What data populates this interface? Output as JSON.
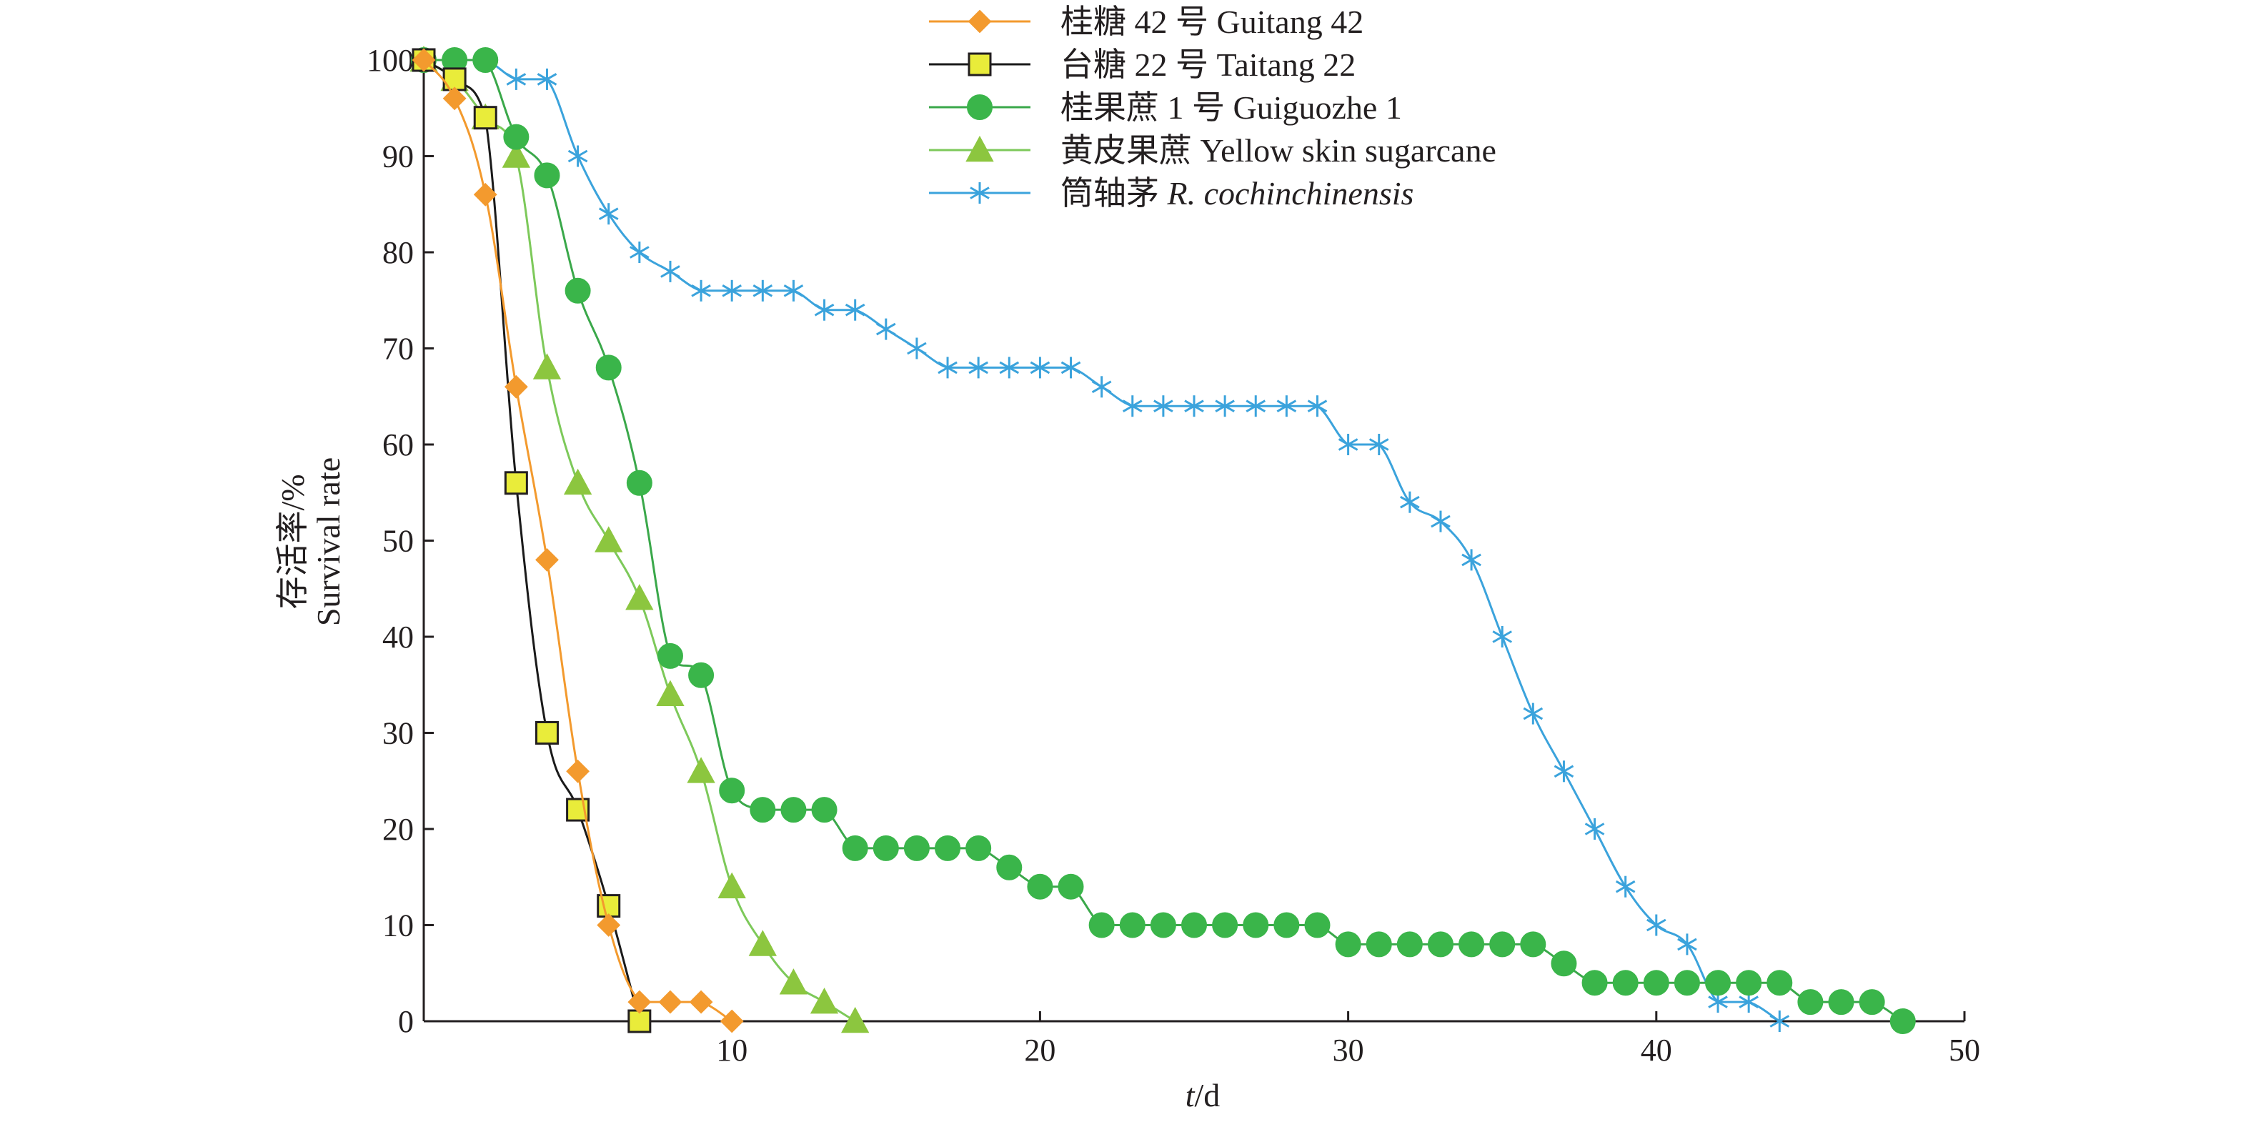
{
  "chart_data": {
    "type": "line",
    "title": "",
    "xlabel_italic": "t",
    "xlabel_rest": "/d",
    "ylabel_cn": "存活率/%",
    "ylabel_en": "Survival rate",
    "xlim": [
      0,
      50
    ],
    "ylim": [
      0,
      100
    ],
    "xticks": [
      10,
      20,
      30,
      40,
      50
    ],
    "yticks": [
      0,
      10,
      20,
      30,
      40,
      50,
      60,
      70,
      80,
      90,
      100
    ],
    "grid": false,
    "legend_position": "top",
    "series": [
      {
        "name": "桂糖 42 号 Guitang 42",
        "legend_cn": "桂糖 42 号",
        "legend_en": "Guitang 42",
        "legend_en_italic": false,
        "color": "#f39a2e",
        "marker": "diamond",
        "marker_fill": "#f39a2e",
        "marker_stroke": "#f39a2e",
        "x": [
          0,
          1,
          2,
          3,
          4,
          5,
          6,
          7,
          8,
          9,
          10
        ],
        "y": [
          100,
          96,
          86,
          66,
          48,
          26,
          10,
          2,
          2,
          2,
          0
        ]
      },
      {
        "name": "台糖 22 号 Taitang 22",
        "legend_cn": "台糖 22 号",
        "legend_en": "Taitang 22",
        "legend_en_italic": false,
        "color": "#1a1a1a",
        "marker": "square",
        "marker_fill": "#e9ec3a",
        "marker_stroke": "#231f20",
        "x": [
          0,
          1,
          2,
          3,
          4,
          5,
          6,
          7
        ],
        "y": [
          100,
          98,
          94,
          56,
          30,
          22,
          12,
          0
        ]
      },
      {
        "name": "桂果蔗 1 号 Guiguozhe 1",
        "legend_cn": "桂果蔗 1 号",
        "legend_en": "Guiguozhe 1",
        "legend_en_italic": false,
        "color": "#3aa84a",
        "marker": "circle",
        "marker_fill": "#3ab54a",
        "marker_stroke": "#3ab54a",
        "x": [
          0,
          1,
          2,
          3,
          4,
          5,
          6,
          7,
          8,
          9,
          10,
          11,
          12,
          13,
          14,
          15,
          16,
          17,
          18,
          19,
          20,
          21,
          22,
          23,
          24,
          25,
          26,
          27,
          28,
          29,
          30,
          31,
          32,
          33,
          34,
          35,
          36,
          37,
          38,
          39,
          40,
          41,
          42,
          43,
          44,
          45,
          46,
          47,
          48
        ],
        "y": [
          100,
          100,
          100,
          92,
          88,
          76,
          68,
          56,
          38,
          36,
          24,
          22,
          22,
          22,
          18,
          18,
          18,
          18,
          18,
          16,
          14,
          14,
          10,
          10,
          10,
          10,
          10,
          10,
          10,
          10,
          8,
          8,
          8,
          8,
          8,
          8,
          8,
          6,
          4,
          4,
          4,
          4,
          4,
          4,
          4,
          2,
          2,
          2,
          0
        ]
      },
      {
        "name": "黄皮果蔗 Yellow skin sugarcane",
        "legend_cn": "黄皮果蔗",
        "legend_en": "Yellow skin sugarcane",
        "legend_en_italic": false,
        "color": "#7dc95a",
        "marker": "triangle",
        "marker_fill": "#8cc63f",
        "marker_stroke": "#8cc63f",
        "x": [
          0,
          1,
          2,
          3,
          4,
          5,
          6,
          7,
          8,
          9,
          10,
          11,
          12,
          13,
          14
        ],
        "y": [
          100,
          98,
          94,
          90,
          68,
          56,
          50,
          44,
          34,
          26,
          14,
          8,
          4,
          2,
          0
        ]
      },
      {
        "name": "筒轴茅 R. cochinchinensis",
        "legend_cn": "筒轴茅",
        "legend_en": "R. cochinchinensis",
        "legend_en_italic": true,
        "color": "#3ba3dc",
        "marker": "asterisk",
        "marker_fill": "none",
        "marker_stroke": "#3ba3dc",
        "x": [
          0,
          1,
          2,
          3,
          4,
          5,
          6,
          7,
          8,
          9,
          10,
          11,
          12,
          13,
          14,
          15,
          16,
          17,
          18,
          19,
          20,
          21,
          22,
          23,
          24,
          25,
          26,
          27,
          28,
          29,
          30,
          31,
          32,
          33,
          34,
          35,
          36,
          37,
          38,
          39,
          40,
          41,
          42,
          43,
          44
        ],
        "y": [
          100,
          100,
          100,
          98,
          98,
          90,
          84,
          80,
          78,
          76,
          76,
          76,
          76,
          74,
          74,
          72,
          70,
          68,
          68,
          68,
          68,
          68,
          66,
          64,
          64,
          64,
          64,
          64,
          64,
          64,
          60,
          60,
          54,
          52,
          48,
          40,
          32,
          26,
          20,
          14,
          10,
          8,
          2,
          2,
          0
        ]
      }
    ]
  }
}
